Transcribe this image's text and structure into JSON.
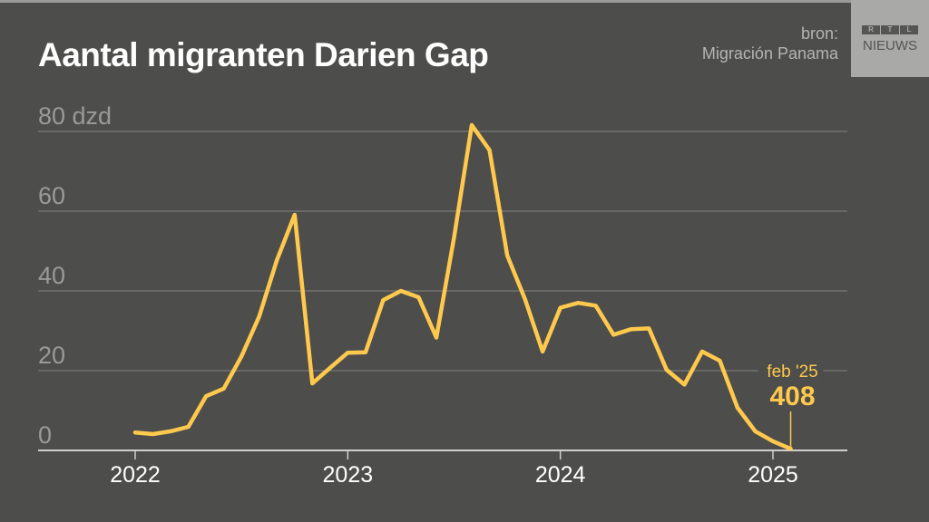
{
  "title": "Aantal migranten Darien Gap",
  "source": {
    "label": "bron:",
    "name": "Migración Panama"
  },
  "logo": {
    "letters": [
      "R",
      "T",
      "L"
    ],
    "word": "NIEUWS"
  },
  "colors": {
    "background": "#4d4d4b",
    "line": "#ffc94d",
    "grid": "#7a7a78",
    "ytick": "#9a9a98"
  },
  "chart_data": {
    "type": "line",
    "title": "Aantal migranten Darien Gap",
    "ylabel": "",
    "yunit": "dzd",
    "ylim": [
      0,
      80
    ],
    "yticks": [
      0,
      20,
      40,
      60,
      80
    ],
    "ytick_labels": [
      "0",
      "20",
      "40",
      "60",
      "80 dzd"
    ],
    "xticks": [
      "2022",
      "2023",
      "2024",
      "2025"
    ],
    "grid": true,
    "x": [
      "2022-01",
      "2022-02",
      "2022-03",
      "2022-04",
      "2022-05",
      "2022-06",
      "2022-07",
      "2022-08",
      "2022-09",
      "2022-10",
      "2022-11",
      "2022-12",
      "2023-01",
      "2023-02",
      "2023-03",
      "2023-04",
      "2023-05",
      "2023-06",
      "2023-07",
      "2023-08",
      "2023-09",
      "2023-10",
      "2023-11",
      "2023-12",
      "2024-01",
      "2024-02",
      "2024-03",
      "2024-04",
      "2024-05",
      "2024-06",
      "2024-07",
      "2024-08",
      "2024-09",
      "2024-10",
      "2024-11",
      "2024-12",
      "2025-01",
      "2025-02"
    ],
    "values": [
      4.5,
      4.1,
      4.8,
      5.9,
      13.6,
      15.5,
      23.6,
      33.6,
      47.7,
      59.1,
      16.8,
      20.7,
      24.5,
      24.6,
      37.7,
      40.0,
      38.4,
      28.3,
      53.4,
      81.6,
      75.3,
      48.9,
      38.0,
      24.8,
      35.8,
      37.0,
      36.3,
      29.0,
      30.4,
      30.6,
      20.2,
      16.5,
      24.8,
      22.5,
      10.7,
      4.8,
      2.3,
      0.408
    ],
    "annotation": {
      "label": "feb '25",
      "value": "408",
      "x": "2025-02"
    }
  }
}
